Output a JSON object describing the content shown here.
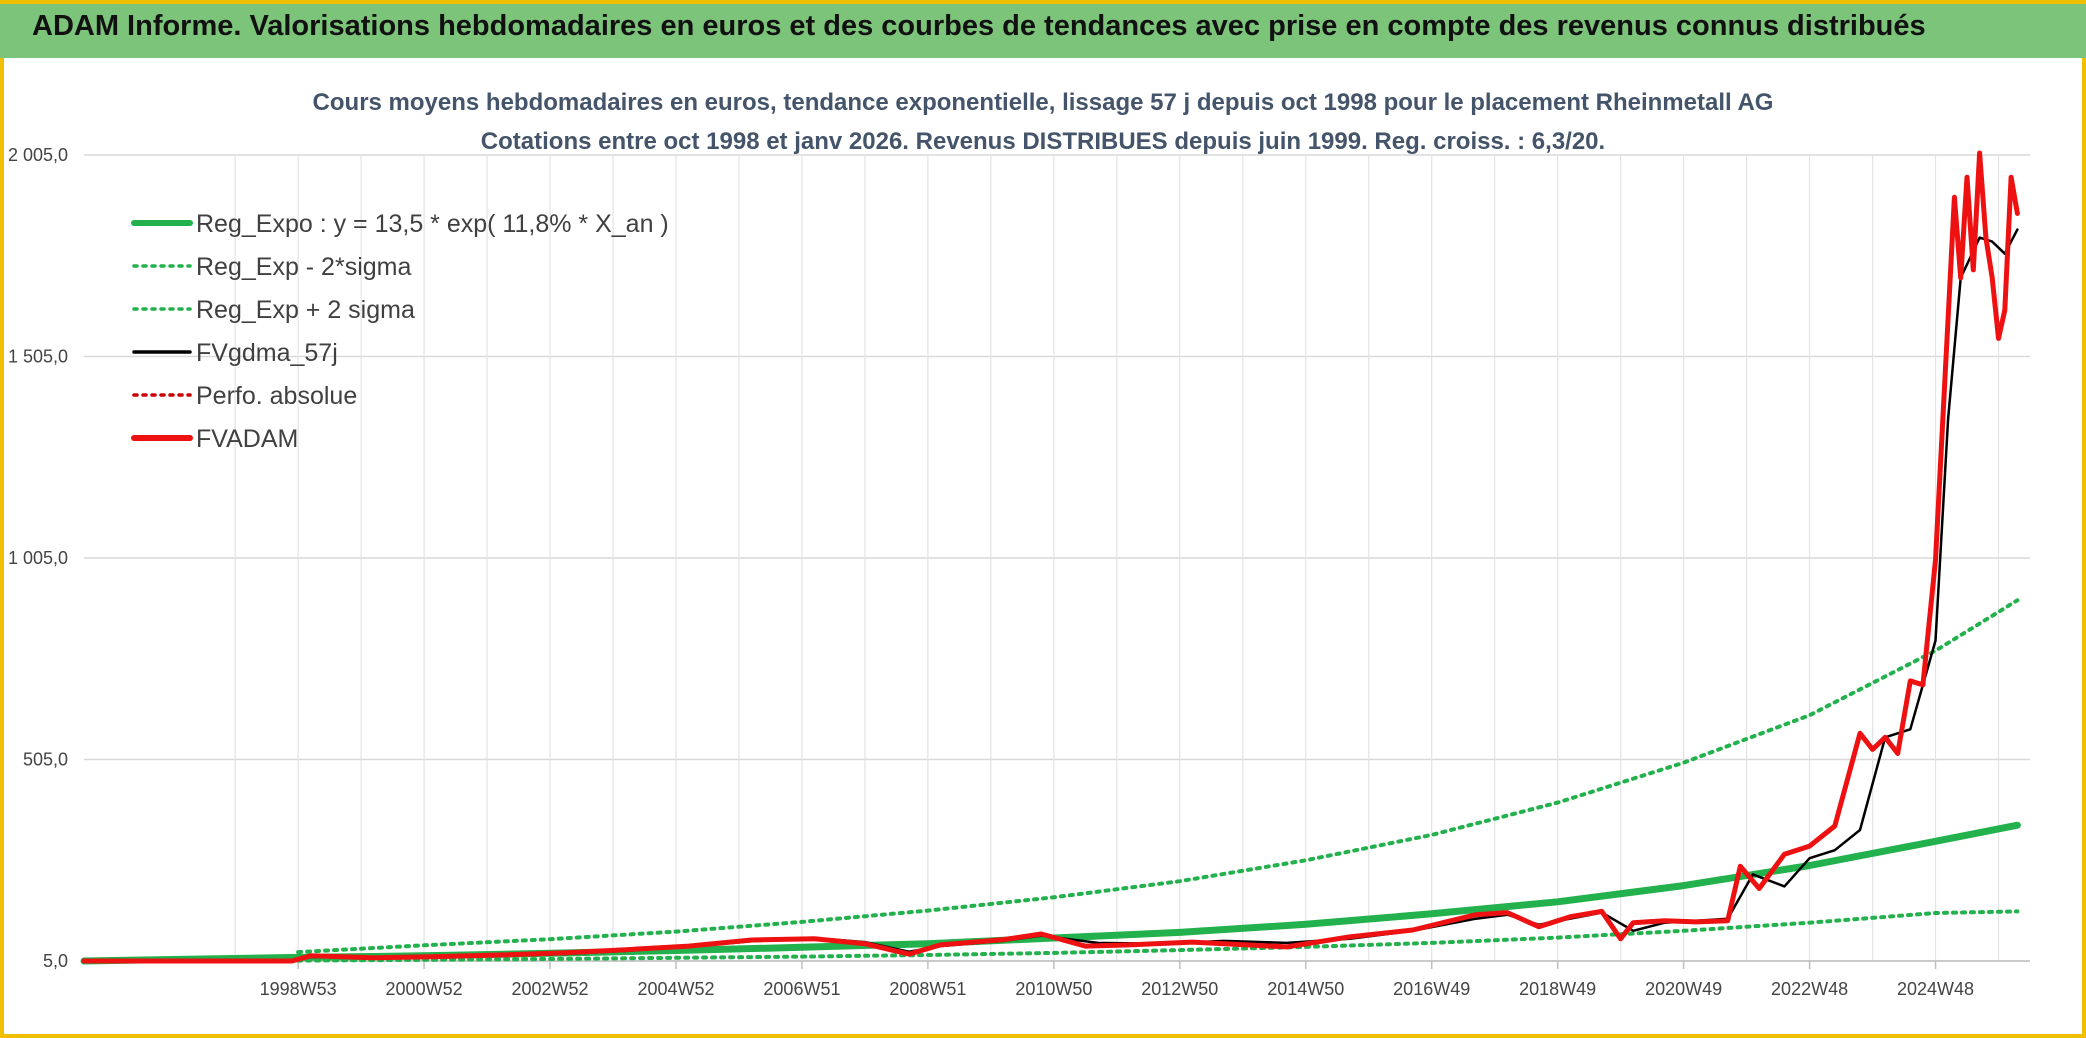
{
  "header": {
    "title": "ADAM Informe. Valorisations hebdomadaires en euros et des courbes de tendances avec prise en compte des revenus connus distribués"
  },
  "chart_data": {
    "type": "line",
    "title": "Cours moyens hebdomadaires en euros, tendance exponentielle, lissage 57 j depuis oct 1998 pour le placement Rheinmetall AG",
    "subtitle": "Cotations entre oct 1998 et janv 2026. Revenus DISTRIBUES depuis juin 1999. Reg. croiss. : 6,3/20.",
    "xlabel": "",
    "ylabel": "",
    "ylim": [
      5,
      2005
    ],
    "xlim": [
      1995.4,
      2026.3
    ],
    "yticks": [
      {
        "value": 5,
        "label": "5,0"
      },
      {
        "value": 505,
        "label": "505,0"
      },
      {
        "value": 1005,
        "label": "1 005,0"
      },
      {
        "value": 1505,
        "label": "1 505,0"
      },
      {
        "value": 2005,
        "label": "2 005,0"
      }
    ],
    "xticks": [
      {
        "x": 1998.8,
        "label": "1998W53"
      },
      {
        "x": 2000.8,
        "label": "2000W52"
      },
      {
        "x": 2002.8,
        "label": "2002W52"
      },
      {
        "x": 2004.8,
        "label": "2004W52"
      },
      {
        "x": 2006.8,
        "label": "2006W51"
      },
      {
        "x": 2008.8,
        "label": "2008W51"
      },
      {
        "x": 2010.8,
        "label": "2010W50"
      },
      {
        "x": 2012.8,
        "label": "2012W50"
      },
      {
        "x": 2014.8,
        "label": "2014W50"
      },
      {
        "x": 2016.8,
        "label": "2016W49"
      },
      {
        "x": 2018.8,
        "label": "2018W49"
      },
      {
        "x": 2020.8,
        "label": "2020W49"
      },
      {
        "x": 2022.8,
        "label": "2022W48"
      },
      {
        "x": 2024.8,
        "label": "2024W48"
      }
    ],
    "grid": true,
    "legend_position": "top-left",
    "series": [
      {
        "name": "Reg_Expo : y = 13,5 * exp( 11,8% *  X_an )",
        "color": "#22b14c",
        "style": "solid-thick",
        "x": [
          1995.4,
          1998.8,
          2000.8,
          2002.8,
          2004.8,
          2006.8,
          2008.8,
          2010.8,
          2012.8,
          2014.8,
          2016.8,
          2018.8,
          2020.8,
          2022.8,
          2024.8,
          2026.1
        ],
        "y": [
          5,
          14,
          18,
          24,
          31,
          39,
          48,
          62,
          76,
          96,
          122,
          152,
          192,
          242,
          302,
          342
        ]
      },
      {
        "name": "Reg_Exp - 2*sigma",
        "color": "#22b14c",
        "style": "dotted",
        "x": [
          1998.8,
          2000.8,
          2002.8,
          2004.8,
          2006.8,
          2008.8,
          2010.8,
          2012.8,
          2014.8,
          2016.8,
          2018.8,
          2020.8,
          2022.8,
          2024.8,
          2026.1
        ],
        "y": [
          6,
          8,
          10,
          13,
          16,
          20,
          25,
          32,
          40,
          50,
          63,
          80,
          100,
          124,
          128
        ]
      },
      {
        "name": "Reg_Exp + 2 sigma",
        "color": "#22b14c",
        "style": "dotted",
        "x": [
          1998.8,
          2000.8,
          2002.8,
          2004.8,
          2006.8,
          2008.8,
          2010.8,
          2012.8,
          2014.8,
          2016.8,
          2018.8,
          2020.8,
          2022.8,
          2024.8,
          2026.1
        ],
        "y": [
          27,
          44,
          59,
          78,
          102,
          130,
          163,
          203,
          255,
          318,
          398,
          497,
          615,
          775,
          900
        ]
      },
      {
        "name": "FVgdma_57j",
        "color": "#000000",
        "style": "solid",
        "x": [
          1995.4,
          1998.7,
          1999.0,
          2000.0,
          2001.0,
          2002.0,
          2003.0,
          2004.0,
          2005.0,
          2006.0,
          2007.0,
          2007.8,
          2008.5,
          2009.0,
          2010.0,
          2010.6,
          2011.5,
          2012.5,
          2013.5,
          2014.5,
          2015.5,
          2016.5,
          2017.5,
          2018.0,
          2018.5,
          2019.0,
          2019.5,
          2020.0,
          2020.5,
          2021.0,
          2021.5,
          2021.9,
          2022.4,
          2022.8,
          2023.2,
          2023.6,
          2024.0,
          2024.4,
          2024.8,
          2025.0,
          2025.2,
          2025.5,
          2025.7,
          2025.9,
          2026.1
        ],
        "y": [
          5,
          5,
          15,
          14,
          15,
          18,
          22,
          30,
          40,
          54,
          62,
          52,
          28,
          42,
          55,
          68,
          50,
          48,
          55,
          50,
          60,
          80,
          110,
          120,
          95,
          110,
          125,
          80,
          100,
          105,
          110,
          220,
          190,
          260,
          280,
          330,
          560,
          580,
          800,
          1350,
          1700,
          1800,
          1790,
          1760,
          1820
        ]
      },
      {
        "name": "Perfo. absolue",
        "color": "#cc0000",
        "style": "dotted",
        "x": [],
        "y": []
      },
      {
        "name": "FVADAM",
        "color": "#ee1111",
        "style": "solid-thick",
        "x": [
          1995.4,
          1998.7,
          1999.0,
          2000.0,
          2001.0,
          2002.0,
          2003.0,
          2004.0,
          2005.0,
          2006.0,
          2007.0,
          2007.8,
          2008.5,
          2009.0,
          2010.0,
          2010.6,
          2011.3,
          2012.0,
          2013.0,
          2014.5,
          2015.5,
          2016.5,
          2017.5,
          2018.0,
          2018.5,
          2019.0,
          2019.5,
          2019.8,
          2020.0,
          2020.5,
          2021.0,
          2021.5,
          2021.7,
          2022.0,
          2022.4,
          2022.8,
          2023.2,
          2023.6,
          2023.8,
          2024.0,
          2024.2,
          2024.4,
          2024.6,
          2024.8,
          2025.0,
          2025.1,
          2025.2,
          2025.3,
          2025.4,
          2025.5,
          2025.6,
          2025.7,
          2025.8,
          2025.9,
          2026.0,
          2026.1
        ],
        "y": [
          5,
          5,
          18,
          13,
          16,
          20,
          25,
          33,
          42,
          57,
          60,
          48,
          22,
          45,
          58,
          72,
          42,
          45,
          52,
          40,
          65,
          82,
          120,
          125,
          90,
          115,
          128,
          60,
          100,
          105,
          102,
          105,
          240,
          185,
          270,
          290,
          340,
          570,
          530,
          560,
          520,
          700,
          690,
          1000,
          1600,
          1900,
          1700,
          1950,
          1720,
          2010,
          1800,
          1700,
          1550,
          1620,
          1950,
          1860
        ]
      }
    ]
  }
}
